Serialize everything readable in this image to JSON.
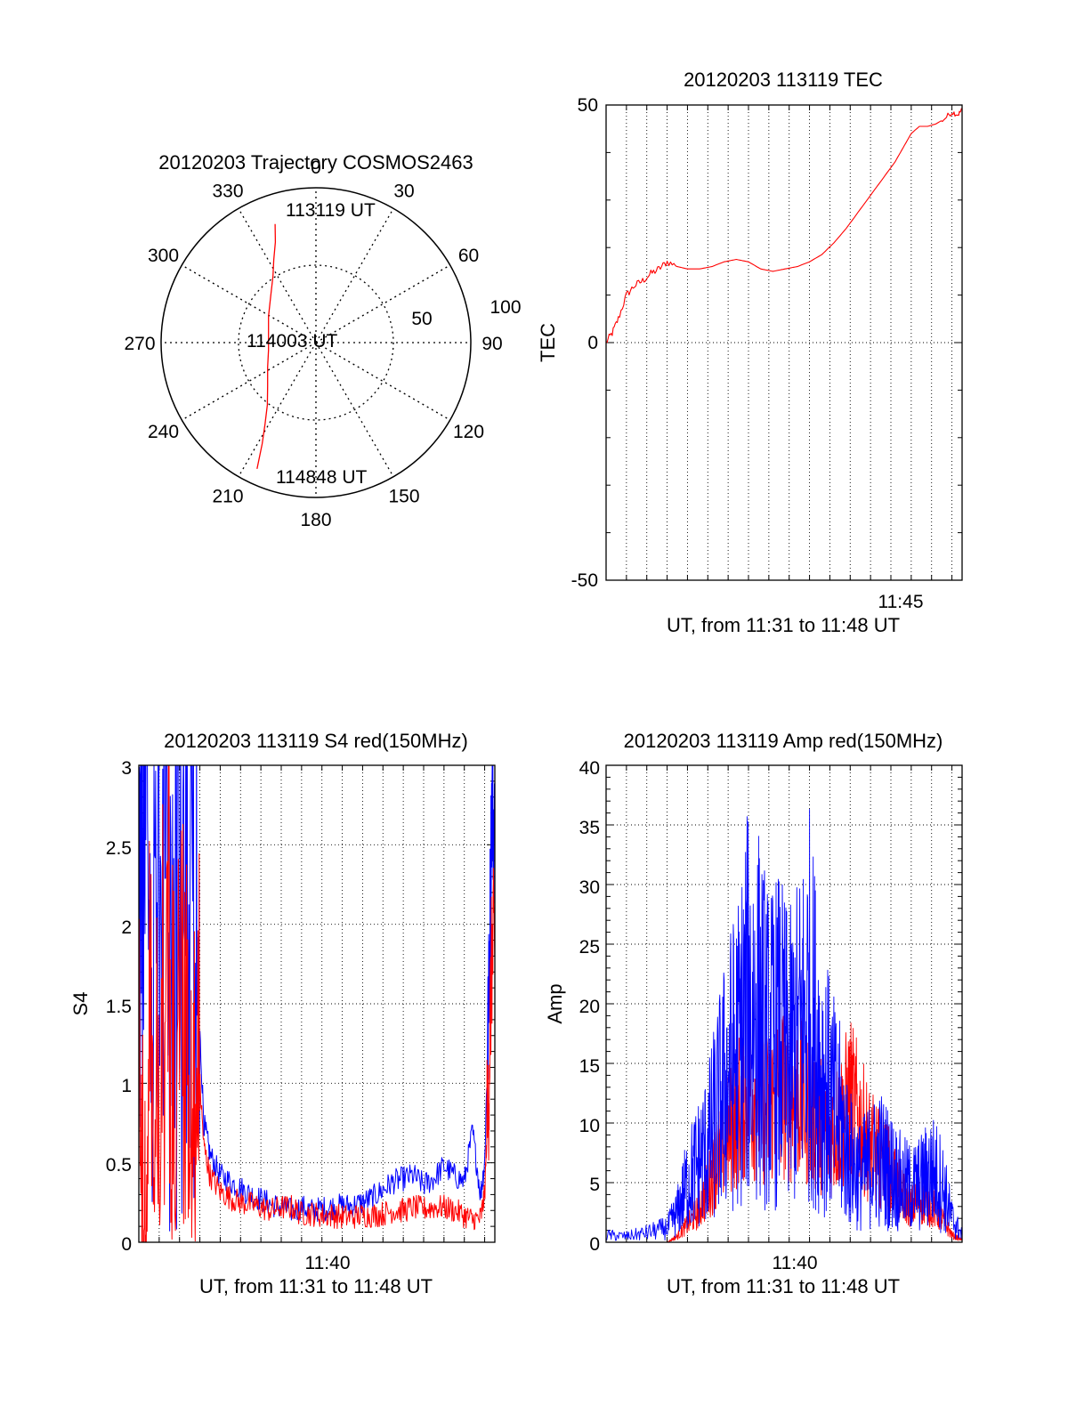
{
  "colors": {
    "red": "#ff0000",
    "blue": "#0000ff",
    "axis": "#000000",
    "grid": "#000000"
  },
  "chart_data": [
    {
      "id": "trajectory",
      "type": "polar",
      "title": "20120203 Trajectory COSMOS2463",
      "azimuth_labels": [
        "0",
        "30",
        "60",
        "90",
        "120",
        "150",
        "180",
        "210",
        "240",
        "270",
        "300",
        "330"
      ],
      "radius_labels": [
        "50",
        "100"
      ],
      "rlim": [
        0,
        100
      ],
      "ring_value": 50,
      "series": [
        {
          "color": "red",
          "points": [
            {
              "az": 341,
              "r": 81
            },
            {
              "az": 338,
              "r": 70
            },
            {
              "az": 333,
              "r": 60
            },
            {
              "az": 327,
              "r": 51
            },
            {
              "az": 316,
              "r": 42
            },
            {
              "az": 299,
              "r": 35
            },
            {
              "az": 279,
              "r": 31
            },
            {
              "az": 261,
              "r": 31
            },
            {
              "az": 243,
              "r": 35
            },
            {
              "az": 228,
              "r": 42
            },
            {
              "az": 218,
              "r": 51
            },
            {
              "az": 212,
              "r": 62
            },
            {
              "az": 208,
              "r": 74
            },
            {
              "az": 205,
              "r": 90
            }
          ]
        }
      ],
      "annotations": [
        {
          "text": "113119 UT",
          "az": 342,
          "r": 82
        },
        {
          "text": "114003 UT",
          "az": 272,
          "r": 28
        },
        {
          "text": "114848 UT",
          "az": 200,
          "r": 90
        }
      ]
    },
    {
      "id": "tec",
      "type": "line",
      "title": "20120203 113119 TEC",
      "ylabel": "TEC",
      "xlabel": "UT, from 11:31 to 11:48 UT",
      "xlim": [
        0,
        17.5
      ],
      "ylim": [
        -50,
        50
      ],
      "yticks": [
        "-50",
        "0",
        "50"
      ],
      "xtick_labels": [
        {
          "x": 14,
          "label": "11:45"
        }
      ],
      "grid": true,
      "series": [
        {
          "color": "red",
          "x": [
            0,
            0.3,
            0.6,
            1.0,
            1.4,
            1.8,
            2.2,
            2.6,
            3.0,
            3.5,
            4.0,
            4.6,
            5.2,
            5.8,
            6.4,
            7.0,
            7.6,
            8.2,
            8.8,
            9.4,
            10.0,
            10.6,
            11.2,
            11.8,
            12.4,
            13.0,
            13.6,
            14.2,
            14.6,
            15.0,
            15.4,
            15.8,
            16.2,
            16.6,
            17.0,
            17.3,
            17.5
          ],
          "y": [
            0,
            2,
            5,
            10,
            12,
            13,
            14.5,
            15.5,
            17,
            16,
            15.5,
            15.5,
            16,
            17,
            17.5,
            17,
            15.5,
            15,
            15.5,
            16,
            17,
            18.5,
            21,
            24,
            27.5,
            31,
            34.5,
            38,
            41,
            44,
            45.5,
            45.5,
            46,
            47,
            48.5,
            48,
            49
          ]
        }
      ]
    },
    {
      "id": "s4",
      "type": "line",
      "title": "20120203 113119 S4 red(150MHz)",
      "ylabel": "S4",
      "xlabel": "UT, from 11:31 to 11:48 UT",
      "xlim": [
        0,
        17.5
      ],
      "ylim": [
        0,
        3
      ],
      "yticks": [
        "0",
        "0.5",
        "1",
        "1.5",
        "2",
        "2.5",
        "3"
      ],
      "xtick_labels": [
        {
          "x": 9,
          "label": "11:40"
        }
      ],
      "grid": true,
      "series": [
        {
          "color": "blue",
          "x": [
            0,
            0.3,
            0.6,
            1.0,
            1.4,
            1.8,
            2.2,
            2.6,
            2.9,
            3.2,
            3.5,
            4.0,
            4.5,
            5.0,
            5.5,
            6.0,
            6.5,
            7.0,
            7.5,
            8.0,
            8.5,
            9.0,
            9.5,
            10.0,
            10.5,
            11.0,
            11.5,
            12.0,
            12.5,
            13.0,
            13.5,
            14.0,
            14.5,
            15.0,
            15.5,
            16.0,
            16.4,
            16.8,
            17.0,
            17.2,
            17.35,
            17.5
          ],
          "y": [
            2.4,
            2.8,
            1.8,
            2.9,
            2.2,
            2.7,
            2.0,
            2.9,
            1.6,
            0.75,
            0.55,
            0.42,
            0.38,
            0.34,
            0.3,
            0.27,
            0.24,
            0.22,
            0.2,
            0.22,
            0.2,
            0.21,
            0.22,
            0.23,
            0.23,
            0.25,
            0.28,
            0.33,
            0.38,
            0.4,
            0.42,
            0.36,
            0.4,
            0.48,
            0.42,
            0.38,
            0.7,
            0.3,
            0.5,
            1.5,
            2.8,
            2.5
          ]
        },
        {
          "color": "red",
          "x": [
            0,
            0.3,
            0.6,
            1.0,
            1.4,
            1.8,
            2.2,
            2.6,
            2.9,
            3.2,
            3.5,
            4.0,
            4.5,
            5.0,
            5.5,
            6.0,
            6.5,
            7.0,
            7.5,
            8.0,
            8.5,
            9.0,
            9.5,
            10.0,
            10.5,
            11.0,
            11.5,
            12.0,
            12.5,
            13.0,
            13.5,
            14.0,
            14.5,
            15.0,
            15.5,
            16.0,
            16.4,
            16.8,
            17.0,
            17.2,
            17.35,
            17.5
          ],
          "y": [
            0.9,
            0.05,
            1.5,
            0.3,
            2.8,
            0.1,
            2.6,
            0.5,
            1.2,
            0.6,
            0.42,
            0.32,
            0.28,
            0.25,
            0.24,
            0.22,
            0.2,
            0.22,
            0.22,
            0.18,
            0.18,
            0.17,
            0.17,
            0.16,
            0.16,
            0.17,
            0.17,
            0.18,
            0.2,
            0.2,
            0.22,
            0.21,
            0.22,
            0.22,
            0.2,
            0.17,
            0.14,
            0.15,
            0.3,
            1.0,
            1.8,
            1.9
          ]
        }
      ]
    },
    {
      "id": "amp",
      "type": "line",
      "title": "20120203 113119 Amp red(150MHz)",
      "ylabel": "Amp",
      "xlabel": "UT, from 11:31 to 11:48 UT",
      "xlim": [
        0,
        17.5
      ],
      "ylim": [
        0,
        40
      ],
      "yticks": [
        "0",
        "5",
        "10",
        "15",
        "20",
        "25",
        "30",
        "35",
        "40"
      ],
      "xtick_labels": [
        {
          "x": 9,
          "label": "11:40"
        }
      ],
      "grid": true,
      "series": [
        {
          "color": "blue",
          "x": [
            0,
            1,
            2,
            3,
            3.5,
            4,
            4.5,
            5,
            5.5,
            6,
            6.5,
            7,
            7.5,
            8,
            8.5,
            9,
            9.5,
            10,
            10.5,
            11,
            11.5,
            12,
            12.5,
            13,
            13.5,
            14,
            14.5,
            15,
            15.5,
            16,
            16.5,
            17,
            17.5
          ],
          "y": [
            0.6,
            0.5,
            0.8,
            1.2,
            2.5,
            5,
            6.5,
            8,
            11,
            14,
            16,
            20,
            19,
            16,
            17,
            15,
            17,
            20,
            15,
            12,
            10,
            7,
            5.5,
            6.5,
            7,
            6,
            5,
            4.5,
            5,
            6,
            5,
            2,
            0.6
          ]
        },
        {
          "color": "red",
          "x": [
            0,
            1,
            2,
            3,
            3.5,
            4,
            4.5,
            5,
            5.5,
            6,
            6.5,
            7,
            7.5,
            8,
            8.5,
            9,
            9.5,
            10,
            10.5,
            11,
            11.5,
            12,
            12.5,
            13,
            13.5,
            14,
            14.5,
            15,
            15.5,
            16,
            16.5,
            17,
            17.5
          ],
          "y": [
            0,
            0,
            0,
            0,
            0.5,
            1.5,
            2.5,
            4.5,
            7,
            9,
            11,
            13,
            12,
            11,
            13,
            12,
            12,
            11,
            10,
            9,
            10,
            12,
            10,
            8,
            7,
            6,
            4,
            3,
            3.5,
            3,
            2,
            0.6,
            0.2
          ]
        }
      ]
    }
  ]
}
